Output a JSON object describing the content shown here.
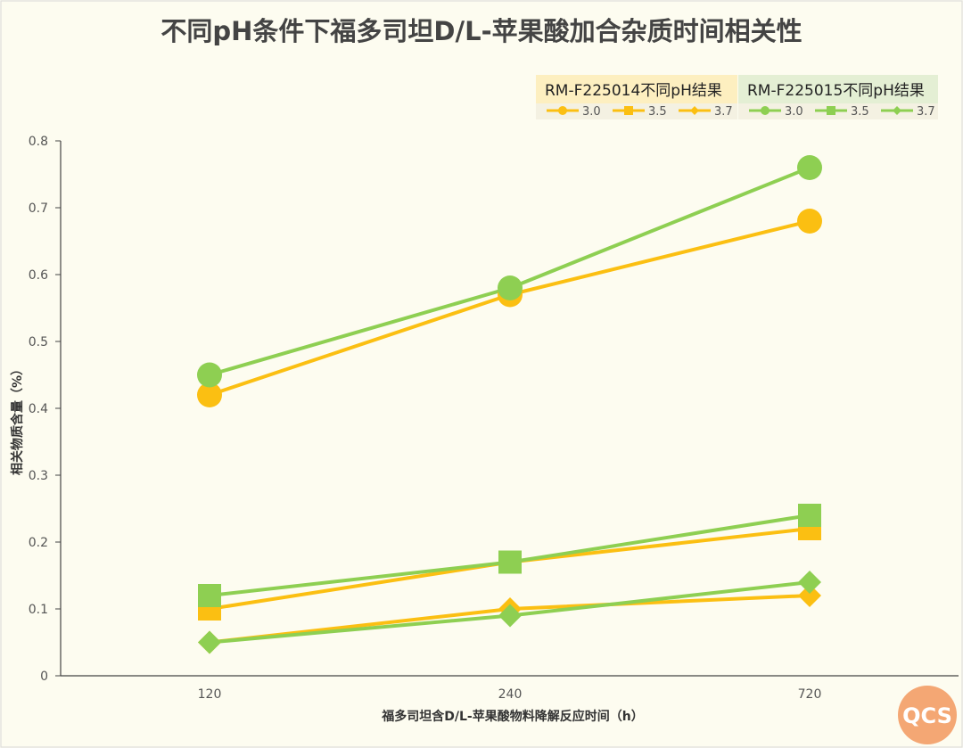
{
  "chart_data": {
    "type": "line",
    "title": "不同pH条件下福多司坦D/L-苹果酸加合杂质时间相关性",
    "xlabel": "福多司坦含D/L-苹果酸物料降解反应时间（h）",
    "ylabel": "相关物质含量（%）",
    "categories": [
      "120",
      "240",
      "720"
    ],
    "ylim": [
      0,
      0.8
    ],
    "yticks": [
      "0",
      "0.1",
      "0.2",
      "0.3",
      "0.4",
      "0.5",
      "0.6",
      "0.7",
      "0.8"
    ],
    "grid": false,
    "legend_placement": "top-right",
    "groups": [
      {
        "name": "RM-F225014不同pH结果",
        "color": "#fbbf12",
        "bg": "#fdefc0"
      },
      {
        "name": "RM-F225015不同pH结果",
        "color": "#8ecf52",
        "bg": "#e4efd4"
      }
    ],
    "series": [
      {
        "name": "3.0",
        "group": 0,
        "marker": "circle",
        "values": [
          0.42,
          0.57,
          0.68
        ]
      },
      {
        "name": "3.5",
        "group": 0,
        "marker": "square",
        "values": [
          0.1,
          0.17,
          0.22
        ]
      },
      {
        "name": "3.7",
        "group": 0,
        "marker": "diamond",
        "values": [
          0.05,
          0.1,
          0.12
        ]
      },
      {
        "name": "3.0",
        "group": 1,
        "marker": "circle",
        "values": [
          0.45,
          0.58,
          0.76
        ]
      },
      {
        "name": "3.5",
        "group": 1,
        "marker": "square",
        "values": [
          0.12,
          0.17,
          0.24
        ]
      },
      {
        "name": "3.7",
        "group": 1,
        "marker": "diamond",
        "values": [
          0.05,
          0.09,
          0.14
        ]
      }
    ]
  },
  "badge": {
    "text": "QCS",
    "color": "#f4a774"
  }
}
